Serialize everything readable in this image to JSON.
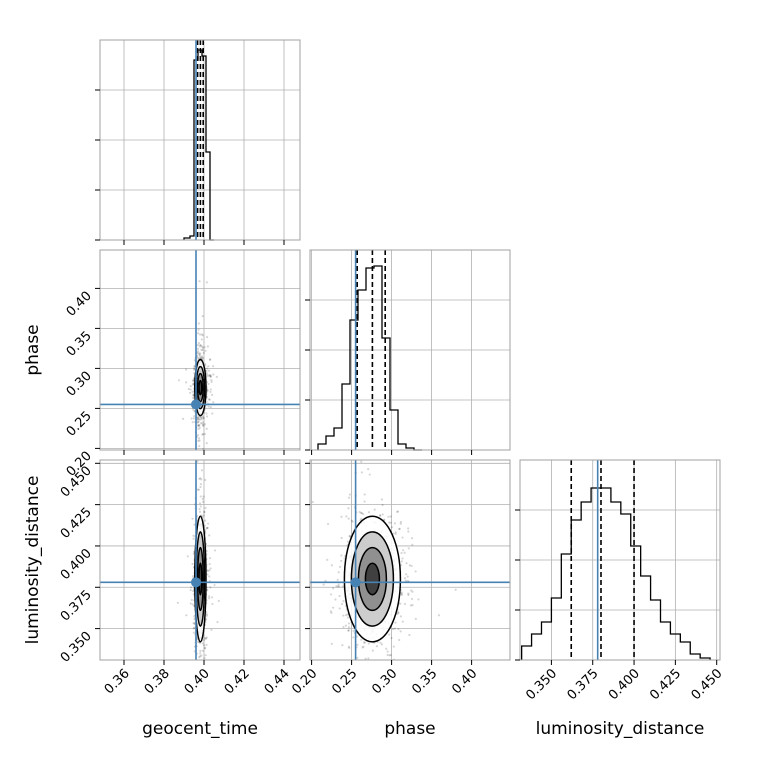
{
  "chart_data": {
    "type": "corner",
    "parameters": [
      "geocent_time",
      "phase",
      "luminosity_distance"
    ],
    "axis_labels": {
      "geocent_time": "geocent_time",
      "phase": "phase",
      "luminosity_distance": "luminosity_distance"
    },
    "ranges": {
      "geocent_time": [
        0.348,
        0.448
      ],
      "phase": [
        0.198,
        0.448
      ],
      "luminosity_distance": [
        0.331,
        0.452
      ]
    },
    "ticks": {
      "geocent_time": [
        "0.36",
        "0.38",
        "0.40",
        "0.42",
        "0.44"
      ],
      "phase": [
        "0.20",
        "0.25",
        "0.30",
        "0.35",
        "0.40"
      ],
      "luminosity_distance": [
        "0.350",
        "0.375",
        "0.400",
        "0.425",
        "0.450"
      ]
    },
    "injection": {
      "geocent_time": 0.396,
      "phase": 0.255,
      "luminosity_distance": 0.378
    },
    "quantiles": {
      "geocent_time": [
        0.3968,
        0.3982,
        0.3996
      ],
      "phase": [
        0.257,
        0.276,
        0.292
      ],
      "luminosity_distance": [
        0.362,
        0.38,
        0.4
      ]
    },
    "histograms": {
      "geocent_time": {
        "edges": [
          0.39,
          0.393,
          0.395,
          0.397,
          0.399,
          0.401,
          0.403,
          0.405
        ],
        "counts": [
          0.01,
          0.02,
          0.9,
          0.95,
          0.92,
          0.44,
          0.0
        ]
      },
      "phase": {
        "edges": [
          0.208,
          0.218,
          0.228,
          0.238,
          0.248,
          0.258,
          0.268,
          0.278,
          0.288,
          0.298,
          0.308,
          0.318,
          0.328,
          0.338
        ],
        "counts": [
          0.03,
          0.07,
          0.11,
          0.33,
          0.65,
          0.8,
          0.91,
          0.92,
          0.56,
          0.2,
          0.03,
          0.01,
          0.0
        ]
      },
      "luminosity_distance": {
        "edges": [
          0.332,
          0.338,
          0.344,
          0.35,
          0.356,
          0.362,
          0.368,
          0.374,
          0.38,
          0.386,
          0.392,
          0.398,
          0.404,
          0.41,
          0.416,
          0.422,
          0.428,
          0.434,
          0.44,
          0.446
        ],
        "counts": [
          0.07,
          0.13,
          0.19,
          0.31,
          0.53,
          0.7,
          0.79,
          0.86,
          0.86,
          0.79,
          0.73,
          0.57,
          0.42,
          0.3,
          0.19,
          0.13,
          0.09,
          0.03,
          0.01
        ]
      }
    },
    "grid": true,
    "colors": {
      "truth": "#4682b4",
      "contour": "#000000",
      "frame": "#a0a0a0",
      "grid": "#b0b0b0"
    }
  }
}
